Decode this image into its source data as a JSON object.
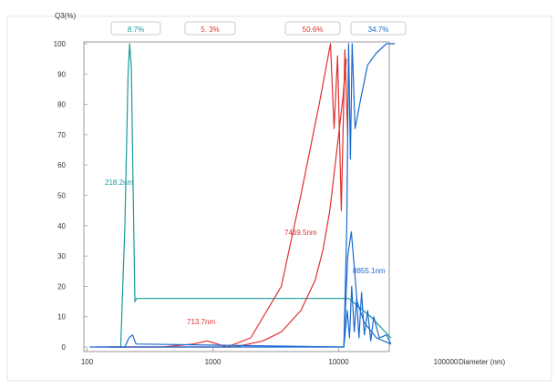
{
  "chart_data": {
    "type": "line",
    "ylabel": "Q3(%)",
    "xlabel": "Diameter (nm)",
    "x_scale": "log",
    "xlim": [
      100,
      40000
    ],
    "ylim": [
      0,
      100
    ],
    "x_ticks": [
      "100",
      "1000",
      "10000",
      "100000"
    ],
    "y_ticks": [
      "0",
      "10",
      "20",
      "30",
      "40",
      "50",
      "60",
      "70",
      "80",
      "90",
      "100"
    ],
    "grid": false,
    "header_tabs": [
      {
        "label": "8.7%",
        "color": "#1a9a9a"
      },
      {
        "label": "5. 3%",
        "color": "#e03030"
      },
      {
        "label": "50.6%",
        "color": "#e03030"
      },
      {
        "label": "34.7%",
        "color": "#1a6ad0"
      }
    ],
    "annotations": [
      {
        "text": "218.2nm",
        "color": "#1a9a9a"
      },
      {
        "text": "713.7nm",
        "color": "#e03030"
      },
      {
        "text": "7469.5nm",
        "color": "#e03030"
      },
      {
        "text": "8855.1nm",
        "color": "#1a6ad0"
      }
    ],
    "series": [
      {
        "color": "#1a9a9a",
        "x": [
          185,
          200,
          212,
          218,
          225,
          232,
          240,
          248,
          12000,
          18000,
          26000
        ],
        "y": [
          0,
          40,
          90,
          100,
          92,
          55,
          15,
          16,
          16,
          10,
          3
        ]
      },
      {
        "color": "#e03030",
        "x": [
          150,
          400,
          700,
          900,
          1300,
          2000,
          3500,
          5000,
          7000,
          8600,
          9200,
          9800,
          10500,
          11200,
          11800
        ],
        "y": [
          0,
          0,
          1,
          2,
          0,
          3,
          20,
          50,
          80,
          100,
          72,
          96,
          45,
          98,
          70
        ]
      },
      {
        "color": "#e03030",
        "x": [
          150,
          1000,
          1500,
          2500,
          3500,
          5000,
          6500,
          7500,
          8500,
          9500,
          10800,
          11500
        ],
        "y": [
          0,
          0,
          0,
          2,
          5,
          12,
          22,
          32,
          45,
          62,
          82,
          95
        ]
      },
      {
        "color": "#1a6ad0",
        "x": [
          120,
          200,
          215,
          230,
          245,
          11000,
          11600,
          12000,
          12400,
          12800,
          13500,
          15000,
          17000,
          20000,
          24000,
          28000
        ],
        "y": [
          0,
          0,
          3,
          4,
          1,
          0,
          40,
          100,
          62,
          100,
          72,
          82,
          93,
          97,
          100,
          100
        ]
      },
      {
        "color": "#1a6ad0",
        "x": [
          11000,
          11700,
          12200,
          12700,
          13300,
          13900,
          14500,
          15200,
          16000,
          17000,
          18000,
          19000,
          21000,
          24000,
          26000
        ],
        "y": [
          0,
          12,
          3,
          20,
          5,
          16,
          3,
          18,
          4,
          12,
          2,
          10,
          3,
          4,
          1
        ]
      },
      {
        "color": "#1a6ad0",
        "x": [
          11000,
          11800,
          12600,
          14000,
          16000,
          20000,
          26000
        ],
        "y": [
          0,
          30,
          38,
          15,
          8,
          3,
          1
        ]
      }
    ]
  }
}
